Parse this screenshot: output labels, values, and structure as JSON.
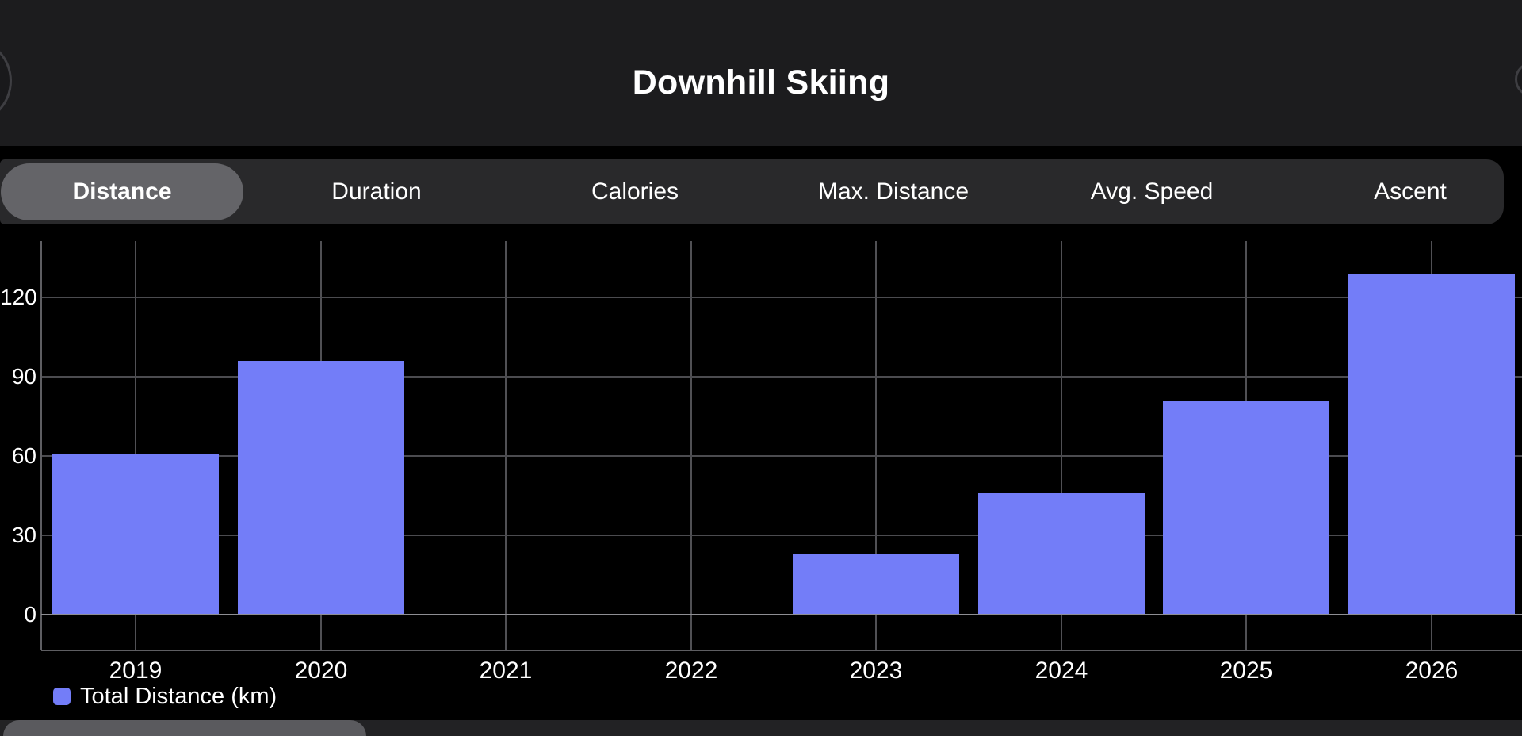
{
  "header": {
    "title": "Downhill Skiing"
  },
  "tabs": {
    "items": [
      {
        "label": "Distance",
        "selected": true
      },
      {
        "label": "Duration",
        "selected": false
      },
      {
        "label": "Calories",
        "selected": false
      },
      {
        "label": "Max. Distance",
        "selected": false
      },
      {
        "label": "Avg. Speed",
        "selected": false
      },
      {
        "label": "Ascent",
        "selected": false
      }
    ]
  },
  "chart_data": {
    "type": "bar",
    "title": "",
    "categories": [
      "2019",
      "2020",
      "2021",
      "2022",
      "2023",
      "2024",
      "2025",
      "2026"
    ],
    "series": [
      {
        "name": "Total Distance (km)",
        "color": "#737DF8",
        "values": [
          61,
          96,
          0,
          0,
          23,
          46,
          81,
          129
        ]
      }
    ],
    "xlabel": "",
    "ylabel": "",
    "yticks": [
      0,
      30,
      60,
      90,
      120
    ],
    "ylim": [
      0,
      141
    ],
    "grid": true,
    "legend_position": "bottom-left",
    "background": "#000000"
  },
  "colors": {
    "header_bg": "#1C1C1E",
    "tabbar_bg": "#29292B",
    "selected_tab_bg": "#646468",
    "bar": "#737DF8",
    "gridline": "#4B4B4F",
    "axis": "#5E5E62",
    "baseline": "#8E8E93",
    "text": "#FFFFFF",
    "bottom_strip_bg": "#222224",
    "bottom_pill_bg": "#5A5A5E"
  }
}
